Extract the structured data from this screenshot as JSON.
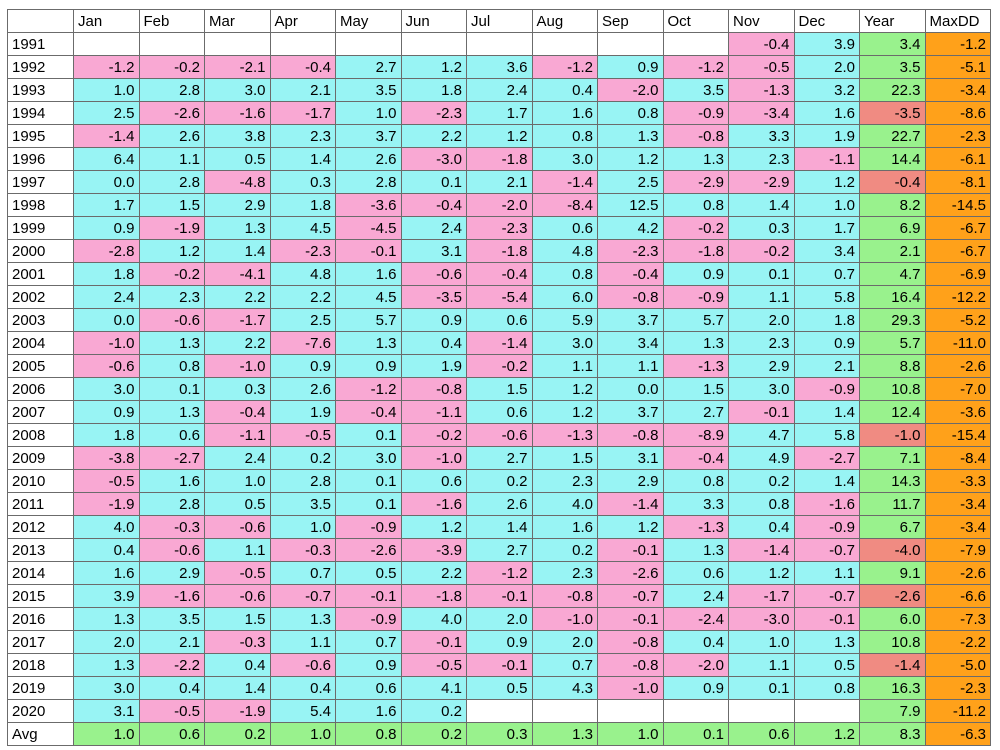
{
  "chart_data": {
    "type": "table",
    "corner": "",
    "columns": [
      "Jan",
      "Feb",
      "Mar",
      "Apr",
      "May",
      "Jun",
      "Jul",
      "Aug",
      "Sep",
      "Oct",
      "Nov",
      "Dec",
      "Year",
      "MaxDD"
    ],
    "rows": [
      {
        "label": "1991",
        "values": [
          null,
          null,
          null,
          null,
          null,
          null,
          null,
          null,
          null,
          null,
          -0.4,
          3.9,
          3.4,
          -1.2
        ]
      },
      {
        "label": "1992",
        "values": [
          -1.2,
          -0.2,
          -2.1,
          -0.4,
          2.7,
          1.2,
          3.6,
          -1.2,
          0.9,
          -1.2,
          -0.5,
          2.0,
          3.5,
          -5.1
        ]
      },
      {
        "label": "1993",
        "values": [
          1.0,
          2.8,
          3.0,
          2.1,
          3.5,
          1.8,
          2.4,
          0.4,
          -2.0,
          3.5,
          -1.3,
          3.2,
          22.3,
          -3.4
        ]
      },
      {
        "label": "1994",
        "values": [
          2.5,
          -2.6,
          -1.6,
          -1.7,
          1.0,
          -2.3,
          1.7,
          1.6,
          0.8,
          -0.9,
          -3.4,
          1.6,
          -3.5,
          -8.6
        ]
      },
      {
        "label": "1995",
        "values": [
          -1.4,
          2.6,
          3.8,
          2.3,
          3.7,
          2.2,
          1.2,
          0.8,
          1.3,
          -0.8,
          3.3,
          1.9,
          22.7,
          -2.3
        ]
      },
      {
        "label": "1996",
        "values": [
          6.4,
          1.1,
          0.5,
          1.4,
          2.6,
          -3.0,
          -1.8,
          3.0,
          1.2,
          1.3,
          2.3,
          -1.1,
          14.4,
          -6.1
        ]
      },
      {
        "label": "1997",
        "values": [
          0.0,
          2.8,
          -4.8,
          0.3,
          2.8,
          0.1,
          2.1,
          -1.4,
          2.5,
          -2.9,
          -2.9,
          1.2,
          -0.4,
          -8.1
        ]
      },
      {
        "label": "1998",
        "values": [
          1.7,
          1.5,
          2.9,
          1.8,
          -3.6,
          -0.4,
          -2.0,
          -8.4,
          12.5,
          0.8,
          1.4,
          1.0,
          8.2,
          -14.5
        ]
      },
      {
        "label": "1999",
        "values": [
          0.9,
          -1.9,
          1.3,
          4.5,
          -4.5,
          2.4,
          -2.3,
          0.6,
          4.2,
          -0.2,
          0.3,
          1.7,
          6.9,
          -6.7
        ]
      },
      {
        "label": "2000",
        "values": [
          -2.8,
          1.2,
          1.4,
          -2.3,
          -0.1,
          3.1,
          -1.8,
          4.8,
          -2.3,
          -1.8,
          -0.2,
          3.4,
          2.1,
          -6.7
        ]
      },
      {
        "label": "2001",
        "values": [
          1.8,
          -0.2,
          -4.1,
          4.8,
          1.6,
          -0.6,
          -0.4,
          0.8,
          -0.4,
          0.9,
          0.1,
          0.7,
          4.7,
          -6.9
        ]
      },
      {
        "label": "2002",
        "values": [
          2.4,
          2.3,
          2.2,
          2.2,
          4.5,
          -3.5,
          -5.4,
          6.0,
          -0.8,
          -0.9,
          1.1,
          5.8,
          16.4,
          -12.2
        ]
      },
      {
        "label": "2003",
        "values": [
          0.0,
          -0.6,
          -1.7,
          2.5,
          5.7,
          0.9,
          0.6,
          5.9,
          3.7,
          5.7,
          2.0,
          1.8,
          29.3,
          -5.2
        ]
      },
      {
        "label": "2004",
        "values": [
          -1.0,
          1.3,
          2.2,
          -7.6,
          1.3,
          0.4,
          -1.4,
          3.0,
          3.4,
          1.3,
          2.3,
          0.9,
          5.7,
          -11.0
        ]
      },
      {
        "label": "2005",
        "values": [
          -0.6,
          0.8,
          -1.0,
          0.9,
          0.9,
          1.9,
          -0.2,
          1.1,
          1.1,
          -1.3,
          2.9,
          2.1,
          8.8,
          -2.6
        ]
      },
      {
        "label": "2006",
        "values": [
          3.0,
          0.1,
          0.3,
          2.6,
          -1.2,
          -0.8,
          1.5,
          1.2,
          0.0,
          1.5,
          3.0,
          -0.9,
          10.8,
          -7.0
        ]
      },
      {
        "label": "2007",
        "values": [
          0.9,
          1.3,
          -0.4,
          1.9,
          -0.4,
          -1.1,
          0.6,
          1.2,
          3.7,
          2.7,
          -0.1,
          1.4,
          12.4,
          -3.6
        ]
      },
      {
        "label": "2008",
        "values": [
          1.8,
          0.6,
          -1.1,
          -0.5,
          0.1,
          -0.2,
          -0.6,
          -1.3,
          -0.8,
          -8.9,
          4.7,
          5.8,
          -1.0,
          -15.4
        ]
      },
      {
        "label": "2009",
        "values": [
          -3.8,
          -2.7,
          2.4,
          0.2,
          3.0,
          -1.0,
          2.7,
          1.5,
          3.1,
          -0.4,
          4.9,
          -2.7,
          7.1,
          -8.4
        ]
      },
      {
        "label": "2010",
        "values": [
          -0.5,
          1.6,
          1.0,
          2.8,
          0.1,
          0.6,
          0.2,
          2.3,
          2.9,
          0.8,
          0.2,
          1.4,
          14.3,
          -3.3
        ]
      },
      {
        "label": "2011",
        "values": [
          -1.9,
          2.8,
          0.5,
          3.5,
          0.1,
          -1.6,
          2.6,
          4.0,
          -1.4,
          3.3,
          0.8,
          -1.6,
          11.7,
          -3.4
        ]
      },
      {
        "label": "2012",
        "values": [
          4.0,
          -0.3,
          -0.6,
          1.0,
          -0.9,
          1.2,
          1.4,
          1.6,
          1.2,
          -1.3,
          0.4,
          -0.9,
          6.7,
          -3.4
        ]
      },
      {
        "label": "2013",
        "values": [
          0.4,
          -0.6,
          1.1,
          -0.3,
          -2.6,
          -3.9,
          2.7,
          0.2,
          -0.1,
          1.3,
          -1.4,
          -0.7,
          -4.0,
          -7.9
        ]
      },
      {
        "label": "2014",
        "values": [
          1.6,
          2.9,
          -0.5,
          0.7,
          0.5,
          2.2,
          -1.2,
          2.3,
          -2.6,
          0.6,
          1.2,
          1.1,
          9.1,
          -2.6
        ]
      },
      {
        "label": "2015",
        "values": [
          3.9,
          -1.6,
          -0.6,
          -0.7,
          -0.1,
          -1.8,
          -0.1,
          -0.8,
          -0.7,
          2.4,
          -1.7,
          -0.7,
          -2.6,
          -6.6
        ]
      },
      {
        "label": "2016",
        "values": [
          1.3,
          3.5,
          1.5,
          1.3,
          -0.9,
          4.0,
          2.0,
          -1.0,
          -0.1,
          -2.4,
          -3.0,
          -0.1,
          6.0,
          -7.3
        ]
      },
      {
        "label": "2017",
        "values": [
          2.0,
          2.1,
          -0.3,
          1.1,
          0.7,
          -0.1,
          0.9,
          2.0,
          -0.8,
          0.4,
          1.0,
          1.3,
          10.8,
          -2.2
        ]
      },
      {
        "label": "2018",
        "values": [
          1.3,
          -2.2,
          0.4,
          -0.6,
          0.9,
          -0.5,
          -0.1,
          0.7,
          -0.8,
          -2.0,
          1.1,
          0.5,
          -1.4,
          -5.0
        ]
      },
      {
        "label": "2019",
        "values": [
          3.0,
          0.4,
          1.4,
          0.4,
          0.6,
          4.1,
          0.5,
          4.3,
          -1.0,
          0.9,
          0.1,
          0.8,
          16.3,
          -2.3
        ]
      },
      {
        "label": "2020",
        "values": [
          3.1,
          -0.5,
          -1.9,
          5.4,
          1.6,
          0.2,
          null,
          null,
          null,
          null,
          null,
          null,
          7.9,
          -11.2
        ]
      }
    ],
    "summary": {
      "label": "Avg",
      "values": [
        1.0,
        0.6,
        0.2,
        1.0,
        0.8,
        0.2,
        0.3,
        1.3,
        1.0,
        0.1,
        0.6,
        1.2,
        8.3,
        -6.3
      ]
    },
    "colors": {
      "positive_month": "#98f4f4",
      "negative_month": "#f9a8d3",
      "positive_year": "#99f28d",
      "negative_year": "#f08b82",
      "max_drawdown": "#ffa11a",
      "avg_row": "#99f28d",
      "empty": "#ffffff"
    }
  }
}
